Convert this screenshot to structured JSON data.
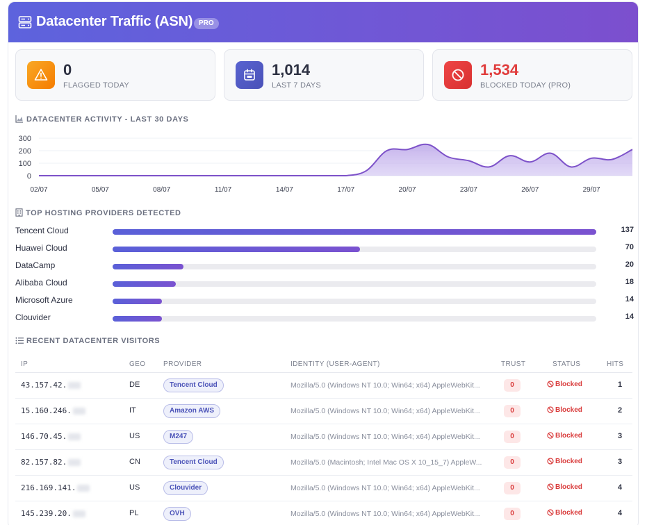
{
  "header": {
    "title": "Datacenter Traffic (ASN)",
    "badge": "PRO",
    "icon": "server-icon"
  },
  "stats": [
    {
      "value": "0",
      "label": "FLAGGED TODAY",
      "icon": "warning-icon",
      "color": "#f7941d"
    },
    {
      "value": "1,014",
      "label": "LAST 7 DAYS",
      "icon": "calendar-icon",
      "color": "#5a5fc8"
    },
    {
      "value": "1,534",
      "label": "BLOCKED TODAY (PRO)",
      "icon": "block-icon",
      "color": "#e53e3e"
    }
  ],
  "activity": {
    "title": "DATACENTER ACTIVITY - LAST 30 DAYS",
    "icon": "chart-area-icon"
  },
  "chart_data": {
    "type": "area",
    "x": [
      "02/07",
      "03/07",
      "04/07",
      "05/07",
      "06/07",
      "07/07",
      "08/07",
      "09/07",
      "10/07",
      "11/07",
      "12/07",
      "13/07",
      "14/07",
      "15/07",
      "16/07",
      "17/07",
      "18/07",
      "19/07",
      "20/07",
      "21/07",
      "22/07",
      "23/07",
      "24/07",
      "25/07",
      "26/07",
      "27/07",
      "28/07",
      "29/07",
      "30/07",
      "31/07"
    ],
    "tick_labels": [
      "02/07",
      "05/07",
      "08/07",
      "11/07",
      "14/07",
      "17/07",
      "20/07",
      "23/07",
      "26/07",
      "29/07"
    ],
    "values": [
      0,
      0,
      0,
      0,
      0,
      0,
      0,
      0,
      0,
      0,
      0,
      0,
      0,
      0,
      0,
      0,
      40,
      200,
      210,
      250,
      150,
      120,
      70,
      160,
      110,
      180,
      70,
      140,
      130,
      210
    ],
    "ylim": [
      0,
      300
    ],
    "yticks": [
      0,
      100,
      200,
      300
    ],
    "grid": true,
    "color": "#7d52c9"
  },
  "providers": {
    "title": "TOP HOSTING PROVIDERS DETECTED",
    "icon": "building-icon",
    "max": 137,
    "items": [
      {
        "name": "Tencent Cloud",
        "count": 137
      },
      {
        "name": "Huawei Cloud",
        "count": 70
      },
      {
        "name": "DataCamp",
        "count": 20
      },
      {
        "name": "Alibaba Cloud",
        "count": 18
      },
      {
        "name": "Microsoft Azure",
        "count": 14
      },
      {
        "name": "Clouvider",
        "count": 14
      }
    ]
  },
  "visitors": {
    "title": "RECENT DATACENTER VISITORS",
    "icon": "list-icon",
    "columns": [
      "IP",
      "GEO",
      "PROVIDER",
      "IDENTITY (USER-AGENT)",
      "TRUST",
      "STATUS",
      "HITS"
    ],
    "rows": [
      {
        "ip": "43.157.42.",
        "geo": "DE",
        "provider": "Tencent Cloud",
        "ua": "Mozilla/5.0 (Windows NT 10.0; Win64; x64) AppleWebKit...",
        "trust": "0",
        "status": "Blocked",
        "hits": "1"
      },
      {
        "ip": "15.160.246.",
        "geo": "IT",
        "provider": "Amazon AWS",
        "ua": "Mozilla/5.0 (Windows NT 10.0; Win64; x64) AppleWebKit...",
        "trust": "0",
        "status": "Blocked",
        "hits": "2"
      },
      {
        "ip": "146.70.45.",
        "geo": "US",
        "provider": "M247",
        "ua": "Mozilla/5.0 (Windows NT 10.0; Win64; x64) AppleWebKit...",
        "trust": "0",
        "status": "Blocked",
        "hits": "3"
      },
      {
        "ip": "82.157.82.",
        "geo": "CN",
        "provider": "Tencent Cloud",
        "ua": "Mozilla/5.0 (Macintosh; Intel Mac OS X 10_15_7) AppleW...",
        "trust": "0",
        "status": "Blocked",
        "hits": "3"
      },
      {
        "ip": "216.169.141.",
        "geo": "US",
        "provider": "Clouvider",
        "ua": "Mozilla/5.0 (Windows NT 10.0; Win64; x64) AppleWebKit...",
        "trust": "0",
        "status": "Blocked",
        "hits": "4"
      },
      {
        "ip": "145.239.20.",
        "geo": "PL",
        "provider": "OVH",
        "ua": "Mozilla/5.0 (Windows NT 10.0; Win64; x64) AppleWebKit...",
        "trust": "0",
        "status": "Blocked",
        "hits": "4"
      }
    ]
  }
}
